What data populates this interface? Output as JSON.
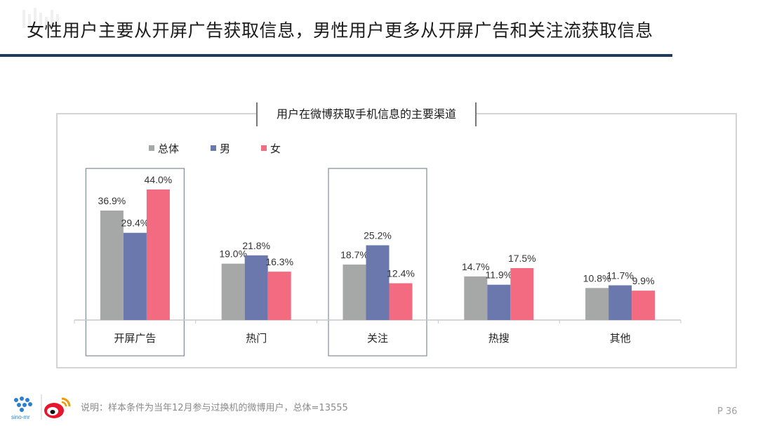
{
  "slide": {
    "title": "女性用户主要从开屏广告获取信息，男性用户更多从开屏广告和关注流获取信息",
    "footnote": "说明：样本条件为当年12月参与过换机的微博用户，总体=13555",
    "page_number": "P 36",
    "brand_text": "sino-mr"
  },
  "chart_data": {
    "type": "bar",
    "title": "用户在微博获取手机信息的主要渠道",
    "xlabel": "",
    "ylabel": "",
    "ylim": [
      0,
      50
    ],
    "grid": false,
    "legend_position": "top-left",
    "categories": [
      "开屏广告",
      "热门",
      "关注",
      "热搜",
      "其他"
    ],
    "highlighted_categories": [
      "开屏广告",
      "关注"
    ],
    "series": [
      {
        "name": "总体",
        "color": "#a5a8a7",
        "values": [
          36.9,
          19.0,
          18.7,
          14.7,
          10.8
        ],
        "labels": [
          "36.9%",
          "19.0%",
          "18.7%",
          "14.7%",
          "10.8%"
        ]
      },
      {
        "name": "男",
        "color": "#6a78ad",
        "values": [
          29.4,
          21.8,
          25.2,
          11.9,
          11.7
        ],
        "labels": [
          "29.4%",
          "21.8%",
          "25.2%",
          "11.9%",
          "11.7%"
        ]
      },
      {
        "name": "女",
        "color": "#f26b80",
        "values": [
          44.0,
          16.3,
          12.4,
          17.5,
          9.9
        ],
        "labels": [
          "44.0%",
          "16.3%",
          "12.4%",
          "17.5%",
          "9.9%"
        ]
      }
    ]
  }
}
